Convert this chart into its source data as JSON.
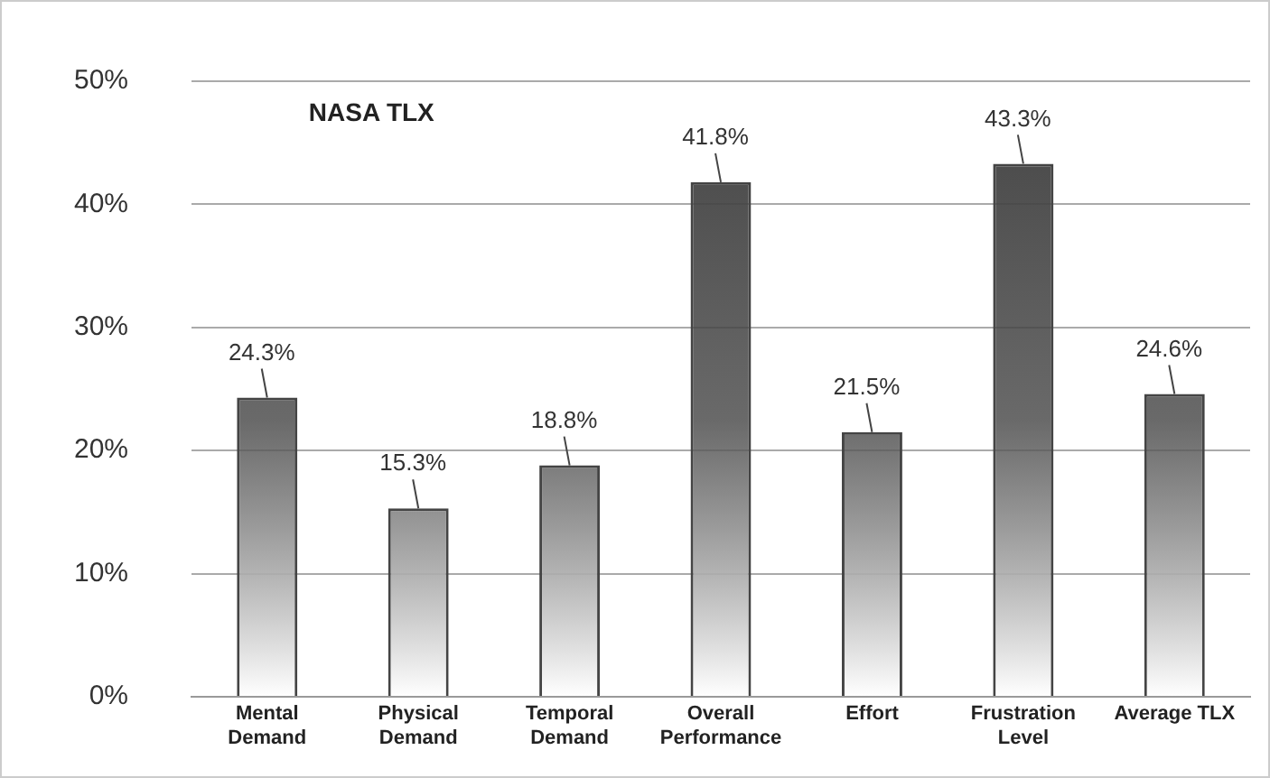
{
  "chart_data": {
    "type": "bar",
    "title": "NASA TLX",
    "categories": [
      "Mental\nDemand",
      "Physical\nDemand",
      "Temporal\nDemand",
      "Overall\nPerformance",
      "Effort",
      "Frustration\nLevel",
      "Average TLX"
    ],
    "values": [
      24.3,
      15.3,
      18.8,
      41.8,
      21.5,
      43.3,
      24.6
    ],
    "value_labels": [
      "24.3%",
      "15.3%",
      "18.8%",
      "41.8%",
      "21.5%",
      "43.3%",
      "24.6%"
    ],
    "color": "#444444",
    "ylim": [
      0,
      50
    ],
    "yticks": [
      {
        "value": 0,
        "label": "0%"
      },
      {
        "value": 10,
        "label": "10%"
      },
      {
        "value": 20,
        "label": "20%"
      },
      {
        "value": 30,
        "label": "30%"
      },
      {
        "value": 40,
        "label": "40%"
      },
      {
        "value": 50,
        "label": "50%"
      }
    ],
    "grid": "y",
    "legend": false
  }
}
